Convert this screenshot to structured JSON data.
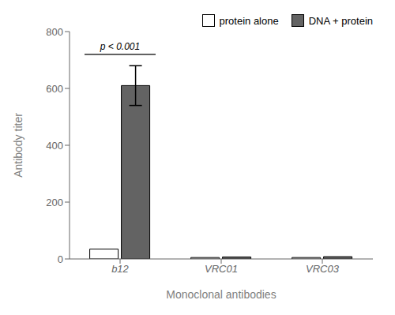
{
  "chart_data": {
    "type": "bar",
    "categories": [
      "b12",
      "VRC01",
      "VRC03"
    ],
    "series": [
      {
        "name": "protein alone",
        "color": "#ffffff",
        "values": [
          35,
          5,
          5
        ],
        "errors": [
          0,
          0,
          0
        ]
      },
      {
        "name": "DNA + protein",
        "color": "#636363",
        "values": [
          610,
          7,
          8
        ],
        "errors": [
          70,
          0,
          0
        ]
      }
    ],
    "xlabel": "Monoclonal antibodies",
    "ylabel": "Antibody titer",
    "ylim": [
      0,
      800
    ],
    "yticks": [
      0,
      200,
      400,
      600,
      800
    ],
    "annotations": [
      {
        "text": "p < 0.001",
        "x": "b12",
        "y": 720
      }
    ],
    "legend": "upper right",
    "grid": false
  }
}
